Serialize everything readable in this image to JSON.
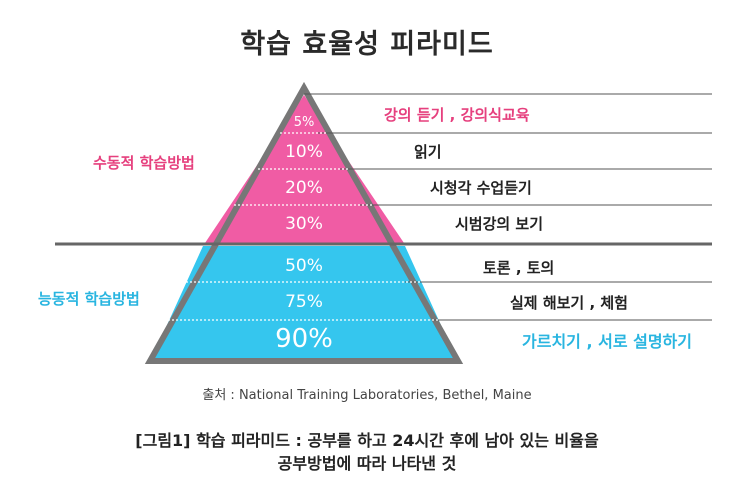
{
  "title": "학습 효율성 피라미드",
  "groups": {
    "passive": {
      "label": "수동적 학습방법",
      "color": "#e6407e"
    },
    "active": {
      "label": "능동적 학습방법",
      "color": "#29b5e0"
    }
  },
  "levels": [
    {
      "percent": "5%",
      "description": "강의 듣기 , 강의식교육",
      "group": "passive",
      "retention": 5
    },
    {
      "percent": "10%",
      "description": "읽기",
      "group": "passive",
      "retention": 10
    },
    {
      "percent": "20%",
      "description": "시청각 수업듣기",
      "group": "passive",
      "retention": 20
    },
    {
      "percent": "30%",
      "description": "시범강의 보기",
      "group": "passive",
      "retention": 30
    },
    {
      "percent": "50%",
      "description": "토론 , 토의",
      "group": "active",
      "retention": 50
    },
    {
      "percent": "75%",
      "description": "실제 해보기 , 체험",
      "group": "active",
      "retention": 75
    },
    {
      "percent": "90%",
      "description": "가르치기 , 서로 설명하기",
      "group": "active",
      "retention": 90
    }
  ],
  "source": "출처 : National Training Laboratories, Bethel, Maine",
  "caption": {
    "line1": "[그림1] 학습 피라미드 : 공부를 하고 24시간 후에 남아 있는 비율을",
    "line2": "공부방법에 따라 나타낸 것"
  },
  "colors": {
    "pink": "#f05ca4",
    "cyan": "#35c6ee",
    "divider": "#666666",
    "lines": "#555555"
  }
}
